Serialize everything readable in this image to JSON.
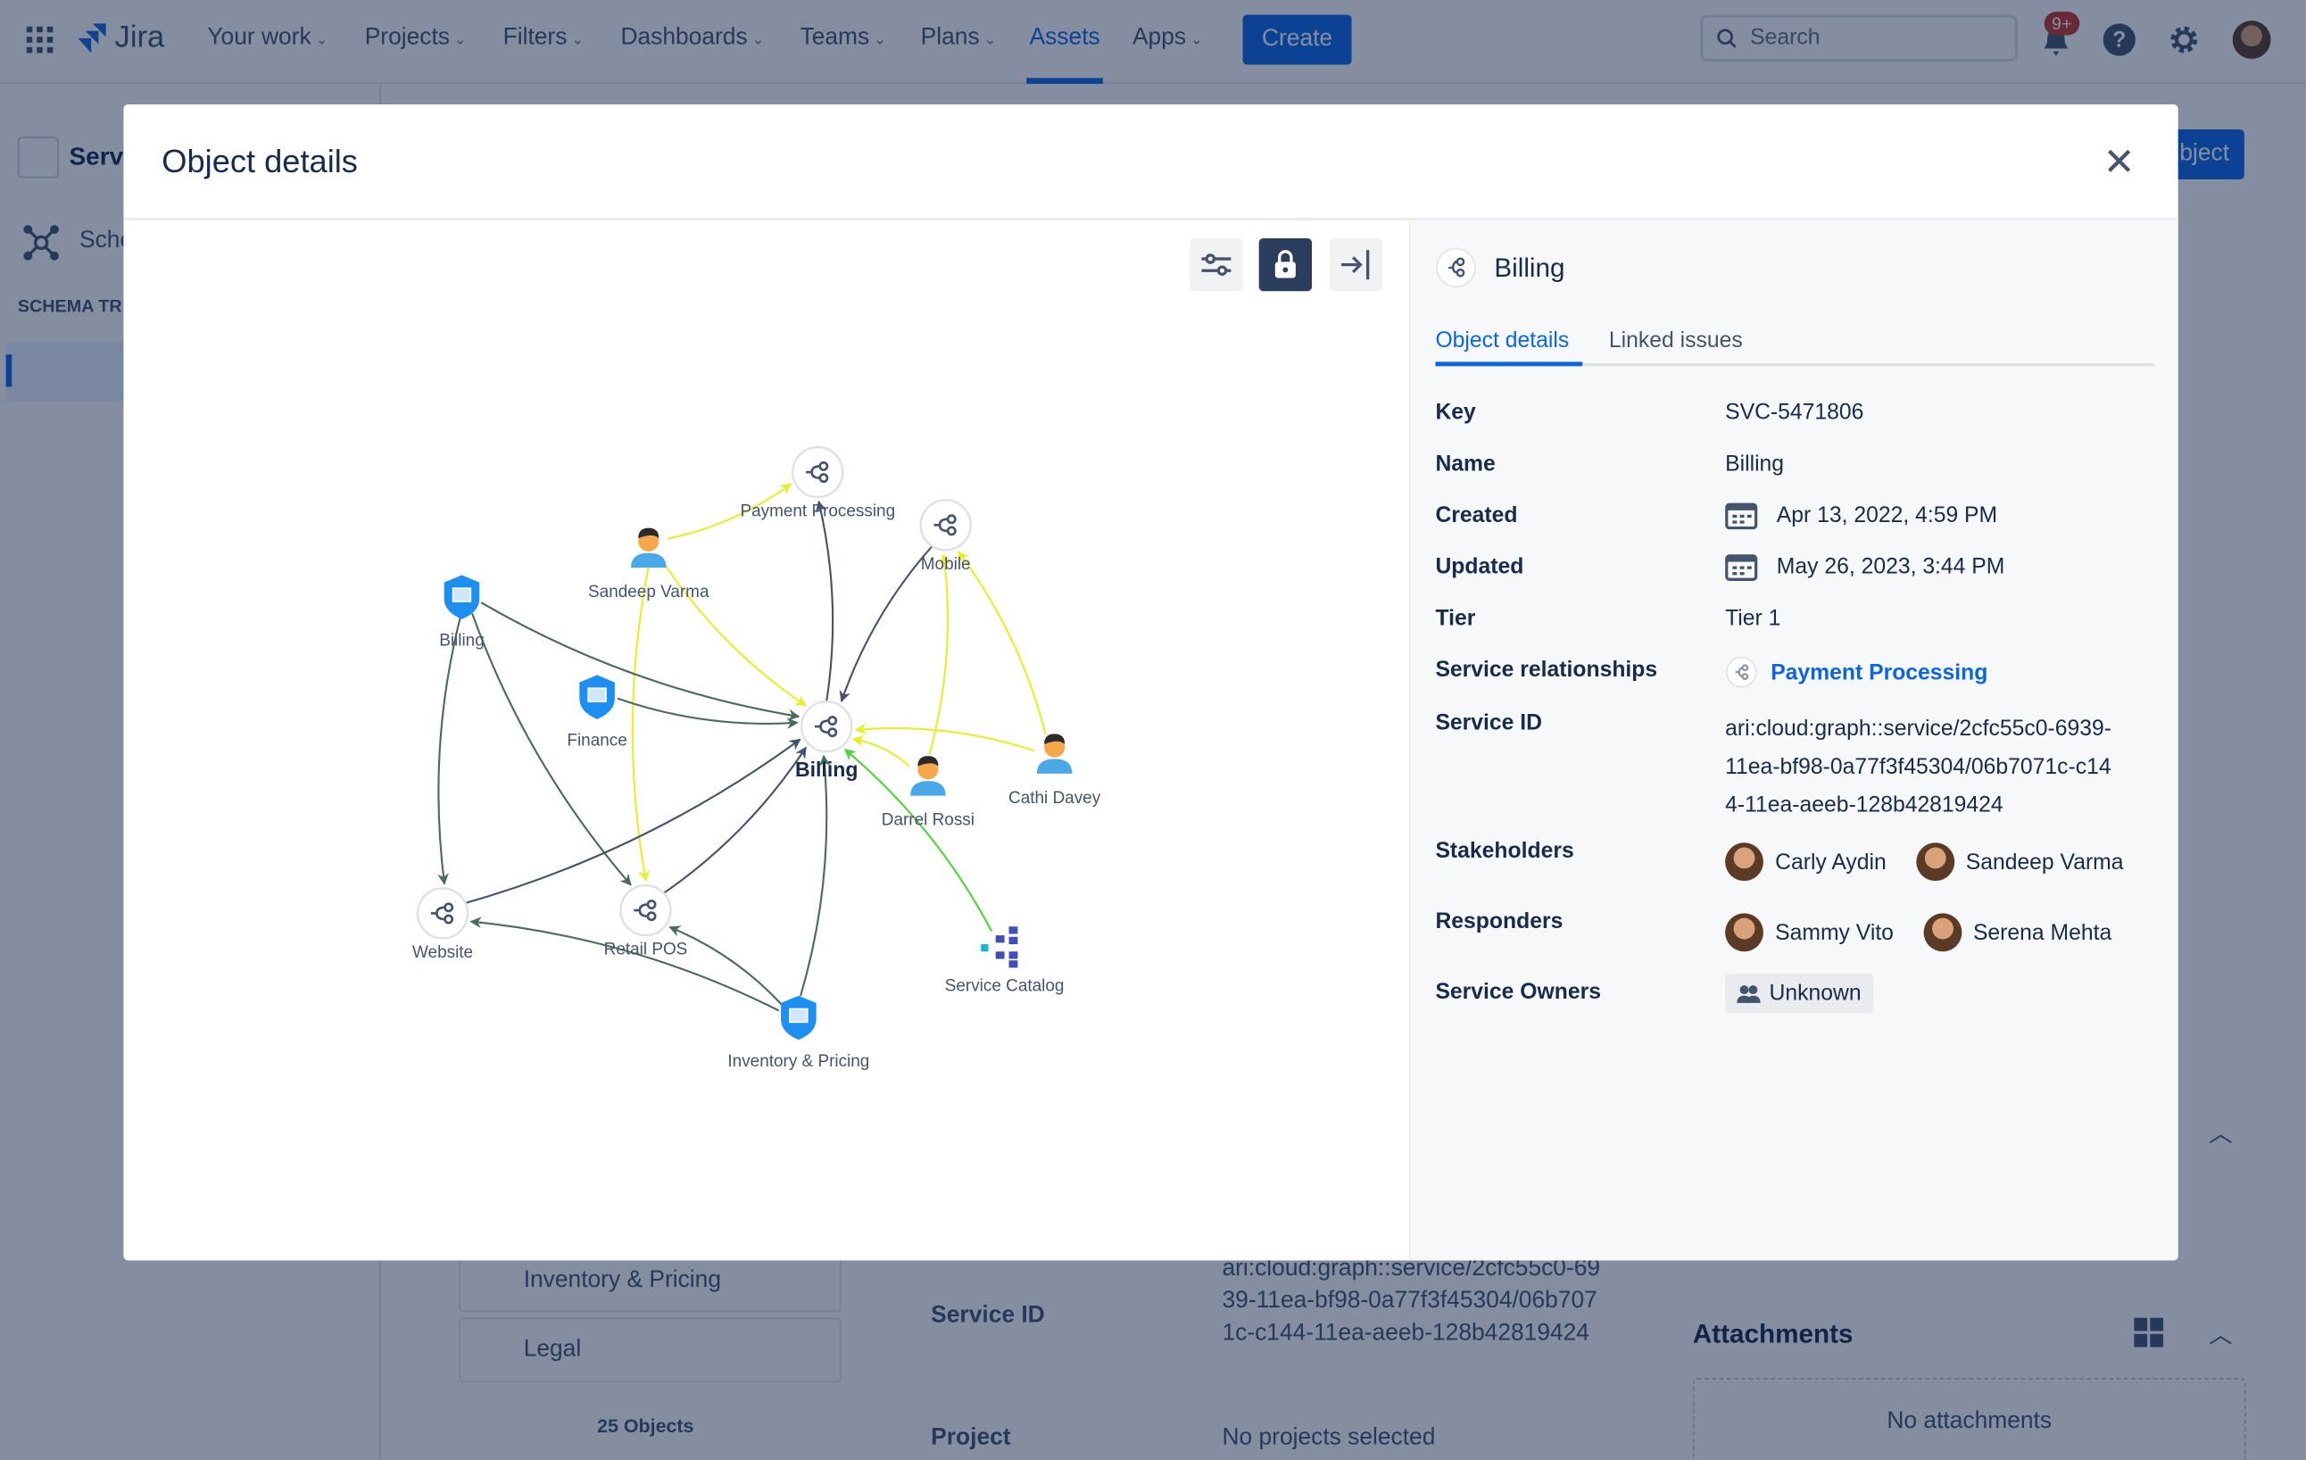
{
  "topnav": {
    "logo": "Jira",
    "items": [
      {
        "label": "Your work",
        "dropdown": true
      },
      {
        "label": "Projects",
        "dropdown": true
      },
      {
        "label": "Filters",
        "dropdown": true
      },
      {
        "label": "Dashboards",
        "dropdown": true
      },
      {
        "label": "Teams",
        "dropdown": true
      },
      {
        "label": "Plans",
        "dropdown": true
      },
      {
        "label": "Assets",
        "dropdown": false,
        "active": true
      },
      {
        "label": "Apps",
        "dropdown": true
      }
    ],
    "create_label": "Create",
    "search_placeholder": "Search",
    "notification_badge": "9+"
  },
  "background": {
    "sidebar_title": "Serv",
    "sidebar_schema": "Sche",
    "schema_tree_heading": "SCHEMA TR",
    "create_object": "bject",
    "list_items": [
      "Inventory & Pricing",
      "Legal"
    ],
    "objects_count": "25 Objects",
    "service_id_label": "Service ID",
    "service_id_value": "ari:cloud:graph::service/2cfc55c0-6939-11ea-bf98-0a77f3f45304/06b7071c-c144-11ea-aeeb-128b42819424",
    "project_label": "Project",
    "project_value": "No projects selected",
    "attachments_label": "Attachments",
    "no_attachments": "No attachments"
  },
  "modal": {
    "title": "Object details",
    "graph": {
      "nodes": [
        {
          "id": "payment",
          "label": "Payment Processing",
          "type": "service"
        },
        {
          "id": "mobile",
          "label": "Mobile",
          "type": "service"
        },
        {
          "id": "sandeep",
          "label": "Sandeep Varma",
          "type": "person"
        },
        {
          "id": "billingShield",
          "label": "Billing",
          "type": "shield"
        },
        {
          "id": "finance",
          "label": "Finance",
          "type": "shield"
        },
        {
          "id": "billing",
          "label": "Billing",
          "type": "service",
          "focus": true
        },
        {
          "id": "darrel",
          "label": "Darrel Rossi",
          "type": "person"
        },
        {
          "id": "cathi",
          "label": "Cathi Davey",
          "type": "person"
        },
        {
          "id": "website",
          "label": "Website",
          "type": "service"
        },
        {
          "id": "retail",
          "label": "Retail POS",
          "type": "service"
        },
        {
          "id": "catalog",
          "label": "Service Catalog",
          "type": "catalog"
        },
        {
          "id": "inventory",
          "label": "Inventory & Pricing",
          "type": "shield"
        }
      ],
      "edges": [
        {
          "from": "sandeep",
          "to": "payment",
          "kind": "stakeholder"
        },
        {
          "from": "sandeep",
          "to": "billing",
          "kind": "stakeholder"
        },
        {
          "from": "sandeep",
          "to": "retail",
          "kind": "stakeholder"
        },
        {
          "from": "darrel",
          "to": "mobile",
          "kind": "stakeholder"
        },
        {
          "from": "cathi",
          "to": "mobile",
          "kind": "stakeholder"
        },
        {
          "from": "darrel",
          "to": "billing",
          "kind": "stakeholder"
        },
        {
          "from": "cathi",
          "to": "billing",
          "kind": "stakeholder"
        },
        {
          "from": "catalog",
          "to": "billing",
          "kind": "catalog"
        },
        {
          "from": "billingShield",
          "to": "billing",
          "kind": "component"
        },
        {
          "from": "billingShield",
          "to": "website",
          "kind": "component"
        },
        {
          "from": "billingShield",
          "to": "retail",
          "kind": "component"
        },
        {
          "from": "finance",
          "to": "billing",
          "kind": "component"
        },
        {
          "from": "inventory",
          "to": "billing",
          "kind": "component"
        },
        {
          "from": "inventory",
          "to": "website",
          "kind": "component"
        },
        {
          "from": "inventory",
          "to": "retail",
          "kind": "component"
        },
        {
          "from": "billing",
          "to": "payment",
          "kind": "service"
        },
        {
          "from": "mobile",
          "to": "billing",
          "kind": "service"
        },
        {
          "from": "website",
          "to": "billing",
          "kind": "service"
        },
        {
          "from": "retail",
          "to": "billing",
          "kind": "service"
        }
      ],
      "edge_colors": {
        "stakeholder": "#e8ee2a",
        "catalog": "#4fd43a",
        "component": "#4a6b60",
        "service": "#44546f"
      }
    },
    "details": {
      "object_name": "Billing",
      "tabs": [
        {
          "label": "Object details",
          "active": true
        },
        {
          "label": "Linked issues",
          "active": false
        }
      ],
      "fields": {
        "key": {
          "label": "Key",
          "value": "SVC-5471806"
        },
        "name": {
          "label": "Name",
          "value": "Billing"
        },
        "created": {
          "label": "Created",
          "value": "Apr 13, 2022, 4:59 PM"
        },
        "updated": {
          "label": "Updated",
          "value": "May 26, 2023, 3:44 PM"
        },
        "tier": {
          "label": "Tier",
          "value": "Tier 1"
        },
        "relationships": {
          "label": "Service relationships",
          "value": "Payment Processing"
        },
        "service_id": {
          "label": "Service ID",
          "lines": [
            "ari:cloud:graph::service/2cfc55c0-6939-",
            "11ea-bf98-0a77f3f45304/06b7071c-c14",
            "4-11ea-aeeb-128b42819424"
          ]
        },
        "stakeholders": {
          "label": "Stakeholders",
          "people": [
            "Carly Aydin",
            "Sandeep Varma"
          ]
        },
        "responders": {
          "label": "Responders",
          "people": [
            "Sammy Vito",
            "Serena Mehta"
          ]
        },
        "owners": {
          "label": "Service Owners",
          "value": "Unknown"
        }
      }
    }
  },
  "colors": {
    "brand": "#0c66e4",
    "text": "#172b4d",
    "link": "#0c66e4"
  }
}
